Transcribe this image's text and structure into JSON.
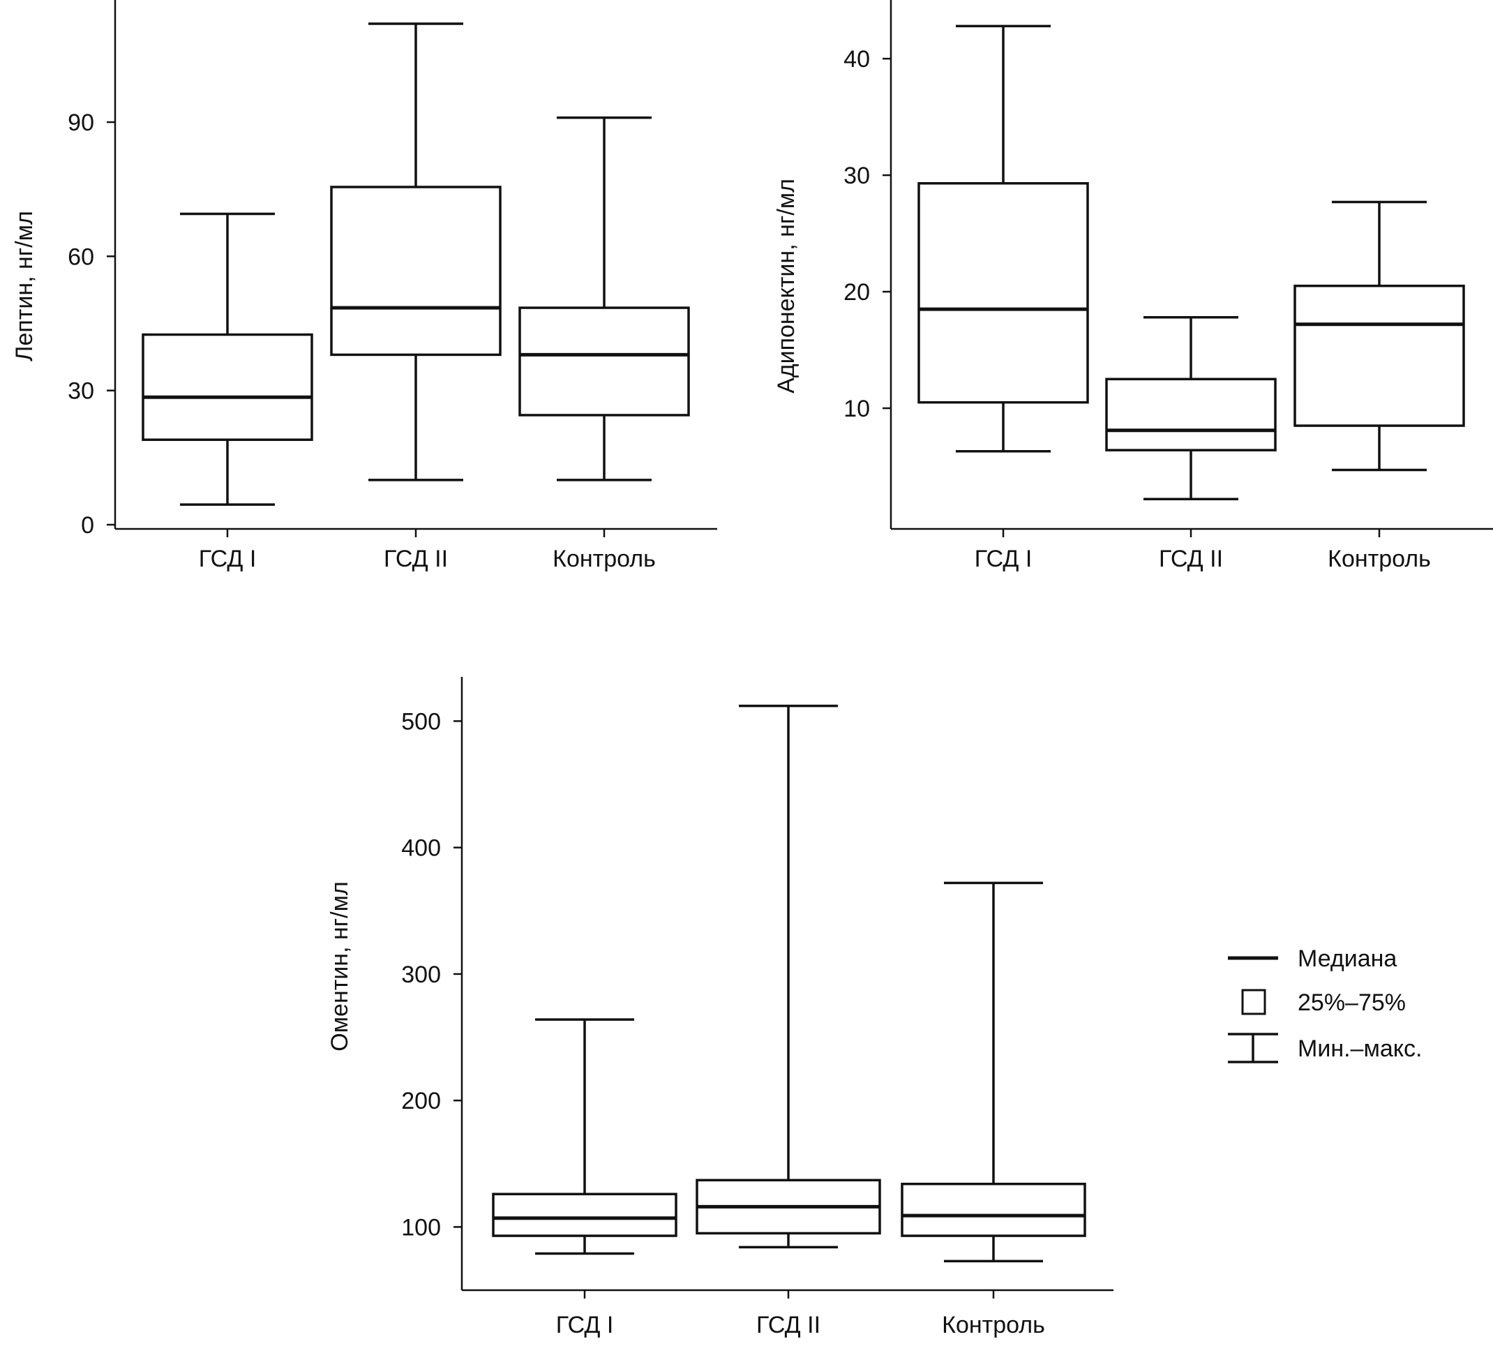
{
  "chart_data": [
    {
      "type": "box",
      "title": "",
      "xlabel": "",
      "ylabel": "Лептин, нг/мл",
      "ylim": [
        0,
        112
      ],
      "yticks": [
        0,
        30,
        60,
        90
      ],
      "categories": [
        "ГСД I",
        "ГСД II",
        "Контроль"
      ],
      "boxes": [
        {
          "min": 4.5,
          "q1": 19,
          "median": 28.5,
          "q3": 42.5,
          "max": 69.5
        },
        {
          "min": 10,
          "q1": 38,
          "median": 48.5,
          "q3": 75.5,
          "max": 112
        },
        {
          "min": 10,
          "q1": 24.5,
          "median": 38,
          "q3": 48.5,
          "max": 91
        }
      ]
    },
    {
      "type": "box",
      "title": "",
      "xlabel": "",
      "ylabel": "Адипонектин, нг/мл",
      "ylim": [
        0,
        43
      ],
      "yticks": [
        10,
        20,
        30,
        40
      ],
      "categories": [
        "ГСД I",
        "ГСД II",
        "Контроль"
      ],
      "boxes": [
        {
          "min": 6.3,
          "q1": 10.5,
          "median": 18.5,
          "q3": 29.3,
          "max": 42.8
        },
        {
          "min": 2.2,
          "q1": 6.4,
          "median": 8.1,
          "q3": 12.5,
          "max": 17.8
        },
        {
          "min": 4.7,
          "q1": 8.5,
          "median": 17.2,
          "q3": 20.5,
          "max": 27.7
        }
      ]
    },
    {
      "type": "box",
      "title": "",
      "xlabel": "",
      "ylabel": "Оментин, нг/мл",
      "ylim": [
        50,
        535
      ],
      "yticks": [
        100,
        200,
        300,
        400,
        500
      ],
      "categories": [
        "ГСД I",
        "ГСД II",
        "Контроль"
      ],
      "boxes": [
        {
          "min": 79,
          "q1": 93,
          "median": 107,
          "q3": 126,
          "max": 264
        },
        {
          "min": 84,
          "q1": 95,
          "median": 116,
          "q3": 137,
          "max": 512
        },
        {
          "min": 73,
          "q1": 93,
          "median": 109,
          "q3": 134,
          "max": 372
        }
      ]
    }
  ],
  "legend": {
    "items": [
      {
        "symbol": "median-line",
        "label": "Медиана"
      },
      {
        "symbol": "box",
        "label": "25%–75%"
      },
      {
        "symbol": "whisker",
        "label": "Мин.–макс."
      }
    ]
  }
}
